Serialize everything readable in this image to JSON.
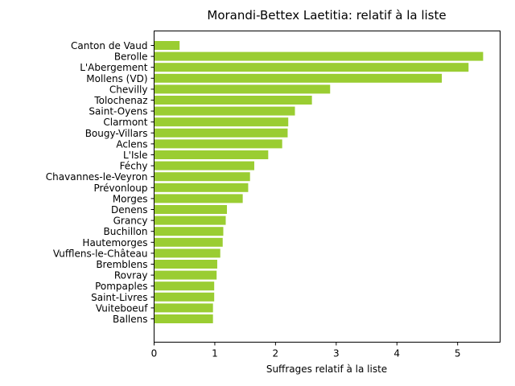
{
  "chart_data": {
    "type": "bar",
    "orientation": "horizontal",
    "title": "Morandi-Bettex Laetitia: relatif à la liste",
    "xlabel": "Suffrages relatif à la liste",
    "ylabel": "",
    "xlim": [
      0,
      5.7
    ],
    "xticks": [
      "0",
      "1",
      "2",
      "3",
      "4",
      "5"
    ],
    "grid": false,
    "bar_color": "#9acd32",
    "categories": [
      "Canton de Vaud",
      "Berolle",
      "L'Abergement",
      "Mollens (VD)",
      "Chevilly",
      "Tolochenaz",
      "Saint-Oyens",
      "Clarmont",
      "Bougy-Villars",
      "Aclens",
      "L'Isle",
      "Féchy",
      "Chavannes-le-Veyron",
      "Prévonloup",
      "Morges",
      "Denens",
      "Grancy",
      "Buchillon",
      "Hautemorges",
      "Vufflens-le-Château",
      "Bremblens",
      "Rovray",
      "Pompaples",
      "Saint-Livres",
      "Vuiteboeuf",
      "Ballens"
    ],
    "values": [
      0.42,
      5.42,
      5.18,
      4.74,
      2.9,
      2.6,
      2.32,
      2.21,
      2.2,
      2.11,
      1.88,
      1.65,
      1.58,
      1.55,
      1.46,
      1.2,
      1.18,
      1.14,
      1.13,
      1.09,
      1.04,
      1.03,
      0.99,
      0.99,
      0.97,
      0.97
    ]
  }
}
